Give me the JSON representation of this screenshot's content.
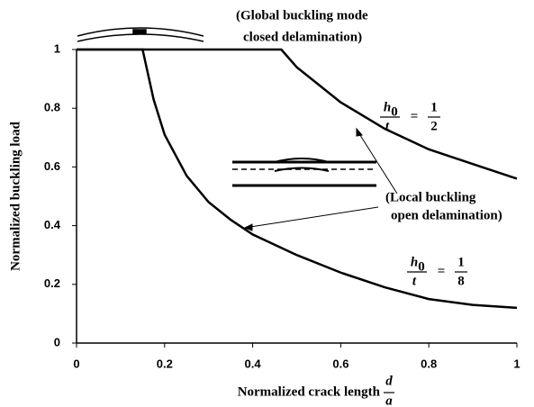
{
  "chart_data": {
    "type": "line",
    "x_label": "Normalized crack length",
    "x_label_fraction": {
      "top": "d",
      "bottom": "a"
    },
    "y_label": "Normalized buckling load",
    "xlim": [
      0,
      1
    ],
    "ylim": [
      0,
      1
    ],
    "xticks": [
      0,
      0.2,
      0.4,
      0.6,
      0.8,
      1
    ],
    "yticks": [
      0,
      0.2,
      0.4,
      0.6,
      0.8,
      1
    ],
    "series": [
      {
        "color": "#000000",
        "x": [
          0,
          0.1,
          0.2,
          0.3,
          0.4,
          0.465,
          0.5,
          0.55,
          0.6,
          0.7,
          0.8,
          0.9,
          1
        ],
        "values": [
          1,
          1,
          1,
          1,
          1,
          1,
          0.94,
          0.88,
          0.82,
          0.73,
          0.66,
          0.61,
          0.56
        ],
        "label": {
          "lhs_top": "h",
          "lhs_sub": "0",
          "lhs_bottom": "t",
          "eq": "=",
          "rhs_top": "1",
          "rhs_bottom": "2"
        }
      },
      {
        "color": "#000000",
        "x": [
          0,
          0.1,
          0.15,
          0.175,
          0.2,
          0.25,
          0.3,
          0.35,
          0.4,
          0.5,
          0.6,
          0.7,
          0.8,
          0.9,
          1
        ],
        "values": [
          1,
          1,
          1,
          0.83,
          0.71,
          0.57,
          0.48,
          0.42,
          0.37,
          0.3,
          0.24,
          0.19,
          0.15,
          0.13,
          0.12
        ],
        "label": {
          "lhs_top": "h",
          "lhs_sub": "0",
          "lhs_bottom": "t",
          "eq": "=",
          "rhs_top": "1",
          "rhs_bottom": "8"
        }
      }
    ],
    "annotations": [
      {
        "lines": [
          "(Global buckling mode",
          "closed delamination)"
        ]
      },
      {
        "lines": [
          "(Local buckling",
          "open delamination)"
        ]
      }
    ]
  }
}
